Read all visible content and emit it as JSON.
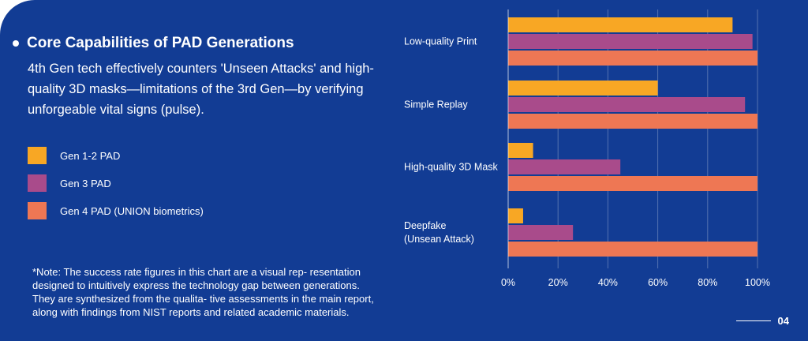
{
  "heading": "Core Capabilities of PAD Generations",
  "description": "4th Gen tech effectively counters 'Unseen Attacks' and high-quality 3D masks—limitations of the 3rd Gen—by verifying unforgeable vital signs (pulse).",
  "note": "*Note: The success rate figures in this chart are a visual rep- resentation designed to intuitively express the technology gap between generations. They are synthesized from the qualita- tive assessments in the main report, along with findings from NIST reports and related academic materials.",
  "page_number": "04",
  "colors": {
    "background": "#123c94",
    "gen12": "#f8a724",
    "gen3": "#a94b8b",
    "gen4": "#ee7754"
  },
  "legend": [
    {
      "label": "Gen 1-2 PAD",
      "color": "#f8a724"
    },
    {
      "label": "Gen 3 PAD",
      "color": "#a94b8b"
    },
    {
      "label": "Gen 4 PAD (UNION biometrics)",
      "color": "#ee7754"
    }
  ],
  "chart_data": {
    "type": "bar",
    "orientation": "horizontal",
    "categories": [
      [
        "Low-quality Print"
      ],
      [
        "Simple Replay"
      ],
      [
        "High-quality 3D Mask"
      ],
      [
        "Deepfake",
        "(Unsean Attack)"
      ]
    ],
    "series": [
      {
        "name": "Gen 1-2 PAD",
        "color": "#f8a724",
        "values": [
          90,
          60,
          10,
          6
        ]
      },
      {
        "name": "Gen 3 PAD",
        "color": "#a94b8b",
        "values": [
          98,
          95,
          45,
          26
        ]
      },
      {
        "name": "Gen 4 PAD (UNION biometrics)",
        "color": "#ee7754",
        "values": [
          100,
          100,
          100,
          100
        ]
      }
    ],
    "xlim": [
      0,
      100
    ],
    "xticks": [
      "0%",
      "20%",
      "40%",
      "60%",
      "80%",
      "100%"
    ],
    "grid": true,
    "legend_position": "left"
  }
}
